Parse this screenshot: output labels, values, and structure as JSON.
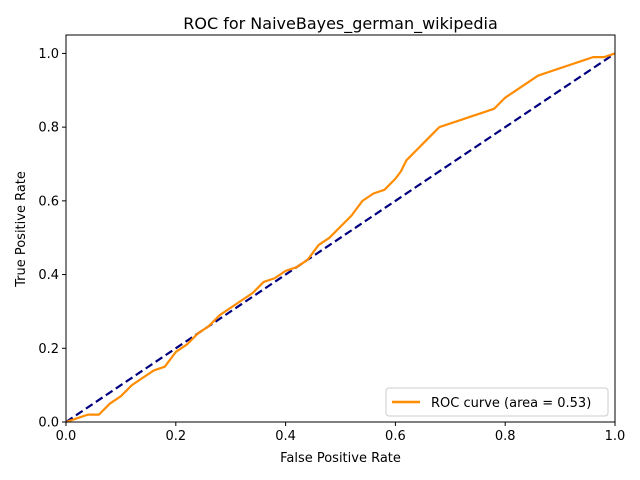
{
  "chart_data": {
    "type": "line",
    "title": "ROC for NaiveBayes_german_wikipedia",
    "xlabel": "False Positive Rate",
    "ylabel": "True Positive Rate",
    "xlim": [
      0.0,
      1.0
    ],
    "ylim": [
      0.0,
      1.05
    ],
    "x_ticks": [
      "0.0",
      "0.2",
      "0.4",
      "0.6",
      "0.8",
      "1.0"
    ],
    "y_ticks": [
      "0.0",
      "0.2",
      "0.4",
      "0.6",
      "0.8",
      "1.0"
    ],
    "grid": false,
    "legend_position": "lower right",
    "colors": {
      "roc": "#ff8c00",
      "diagonal": "#000080"
    },
    "series": [
      {
        "name": "ROC curve (area = 0.53)",
        "style": "solid",
        "x": [
          0.0,
          0.02,
          0.04,
          0.06,
          0.08,
          0.1,
          0.12,
          0.14,
          0.16,
          0.18,
          0.2,
          0.22,
          0.24,
          0.26,
          0.28,
          0.3,
          0.32,
          0.34,
          0.36,
          0.38,
          0.4,
          0.42,
          0.44,
          0.46,
          0.48,
          0.5,
          0.52,
          0.54,
          0.56,
          0.58,
          0.6,
          0.61,
          0.62,
          0.64,
          0.66,
          0.68,
          0.7,
          0.72,
          0.74,
          0.76,
          0.78,
          0.8,
          0.82,
          0.84,
          0.86,
          0.88,
          0.9,
          0.92,
          0.94,
          0.96,
          0.98,
          1.0
        ],
        "y": [
          0.0,
          0.01,
          0.02,
          0.02,
          0.05,
          0.07,
          0.1,
          0.12,
          0.14,
          0.15,
          0.19,
          0.21,
          0.24,
          0.26,
          0.29,
          0.31,
          0.33,
          0.35,
          0.38,
          0.39,
          0.41,
          0.42,
          0.44,
          0.48,
          0.5,
          0.53,
          0.56,
          0.6,
          0.62,
          0.63,
          0.66,
          0.68,
          0.71,
          0.74,
          0.77,
          0.8,
          0.81,
          0.82,
          0.83,
          0.84,
          0.85,
          0.88,
          0.9,
          0.92,
          0.94,
          0.95,
          0.96,
          0.97,
          0.98,
          0.99,
          0.99,
          1.0
        ]
      },
      {
        "name": "",
        "style": "dashed",
        "x": [
          0.0,
          1.0
        ],
        "y": [
          0.0,
          1.0
        ]
      }
    ]
  }
}
